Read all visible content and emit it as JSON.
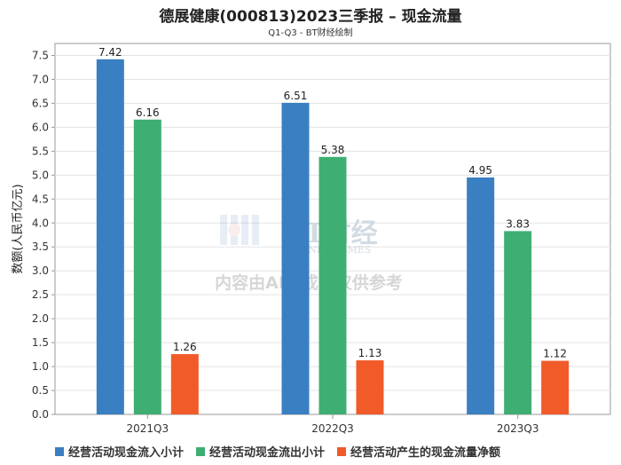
{
  "title": "德展健康(000813)2023三季报 – 现金流量",
  "subtitle": "Q1-Q3 - BT财经绘制",
  "watermark": {
    "brand": "BT财经",
    "brand_en": "BUSINESSTIMES",
    "notice": "内容由AI生成，仅供参考"
  },
  "chart_data": {
    "type": "bar",
    "categories": [
      "2021Q3",
      "2022Q3",
      "2023Q3"
    ],
    "ylabel": "数额(人民币亿元)",
    "ylim": [
      0,
      7.75
    ],
    "yticks": [
      0.0,
      0.5,
      1.0,
      1.5,
      2.0,
      2.5,
      3.0,
      3.5,
      4.0,
      4.5,
      5.0,
      5.5,
      6.0,
      6.5,
      7.0,
      7.5
    ],
    "grid": true,
    "legend_position": "bottom",
    "series": [
      {
        "name": "经营活动现金流入小计",
        "color": "#3a7fc1",
        "values": [
          7.42,
          6.51,
          4.95
        ]
      },
      {
        "name": "经营活动现金流出小计",
        "color": "#3fae72",
        "values": [
          6.16,
          5.38,
          3.83
        ]
      },
      {
        "name": "经营活动产生的现金流量净额",
        "color": "#f15a29",
        "values": [
          1.26,
          1.13,
          1.12
        ]
      }
    ]
  }
}
